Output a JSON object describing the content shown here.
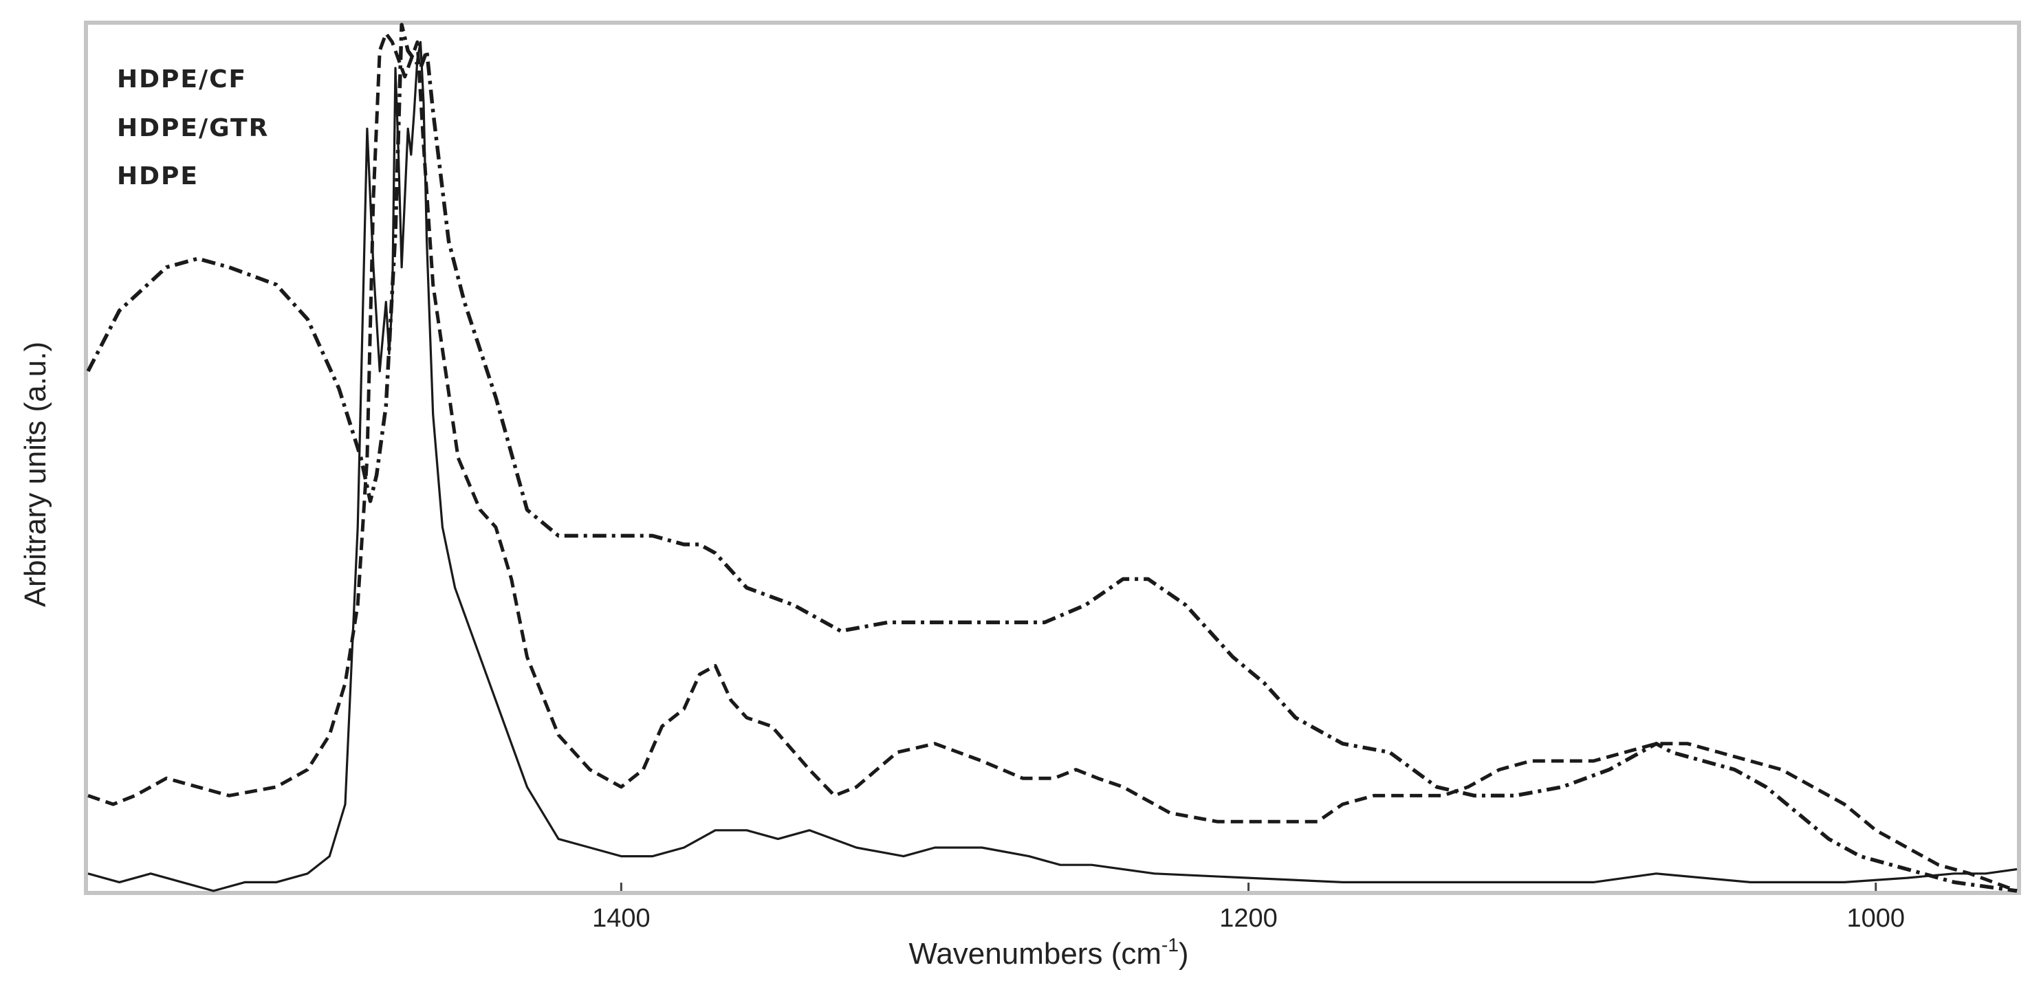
{
  "chart_data": {
    "type": "line",
    "xlabel": "Wavenumbers (cm",
    "xlabel_sup": "-1",
    "xlabel_tail": ")",
    "ylabel": "Arbitrary units (a.u.)",
    "xlim": [
      1570,
      955
    ],
    "ylim": [
      0,
      1
    ],
    "x_reversed": true,
    "yticks": false,
    "grid": false,
    "legend_position": "top-left",
    "legend": [
      "HDPE/CF",
      "HDPE/GTR",
      "HDPE"
    ],
    "xticks": [
      1400,
      1200,
      1000
    ],
    "series": [
      {
        "name": "HDPE/CF",
        "style": "dash-dot",
        "color": "#1a1a1a",
        "x": [
          1570,
          1560,
          1545,
          1535,
          1525,
          1510,
          1500,
          1490,
          1483,
          1480,
          1478,
          1475,
          1472,
          1470,
          1468,
          1466,
          1464,
          1462,
          1460,
          1455,
          1450,
          1440,
          1430,
          1420,
          1410,
          1400,
          1390,
          1380,
          1375,
          1370,
          1360,
          1345,
          1330,
          1315,
          1300,
          1280,
          1265,
          1252,
          1240,
          1232,
          1220,
          1205,
          1195,
          1185,
          1170,
          1155,
          1140,
          1128,
          1115,
          1100,
          1085,
          1075,
          1070,
          1065,
          1055,
          1045,
          1035,
          1025,
          1015,
          1005,
          995,
          985,
          975,
          965,
          955
        ],
        "y": [
          0.6,
          0.67,
          0.72,
          0.73,
          0.72,
          0.7,
          0.66,
          0.58,
          0.5,
          0.45,
          0.48,
          0.56,
          0.76,
          1.0,
          0.97,
          0.96,
          0.95,
          0.97,
          0.9,
          0.75,
          0.68,
          0.57,
          0.44,
          0.41,
          0.41,
          0.41,
          0.41,
          0.4,
          0.4,
          0.39,
          0.35,
          0.33,
          0.3,
          0.31,
          0.31,
          0.31,
          0.31,
          0.33,
          0.36,
          0.36,
          0.33,
          0.27,
          0.24,
          0.2,
          0.17,
          0.16,
          0.12,
          0.11,
          0.11,
          0.12,
          0.14,
          0.16,
          0.17,
          0.16,
          0.15,
          0.14,
          0.12,
          0.09,
          0.06,
          0.04,
          0.03,
          0.02,
          0.01,
          0.005,
          0.0
        ]
      },
      {
        "name": "HDPE/GTR",
        "style": "dashed",
        "color": "#1a1a1a",
        "x": [
          1570,
          1562,
          1555,
          1545,
          1535,
          1525,
          1510,
          1500,
          1493,
          1488,
          1484,
          1481,
          1479,
          1477,
          1475,
          1473,
          1471,
          1469,
          1467,
          1465,
          1463,
          1460,
          1456,
          1452,
          1445,
          1440,
          1435,
          1430,
          1420,
          1410,
          1400,
          1393,
          1387,
          1380,
          1375,
          1370,
          1365,
          1360,
          1352,
          1340,
          1332,
          1325,
          1312,
          1300,
          1285,
          1272,
          1262,
          1255,
          1248,
          1240,
          1225,
          1210,
          1195,
          1185,
          1178,
          1170,
          1160,
          1145,
          1138,
          1130,
          1120,
          1110,
          1100,
          1090,
          1080,
          1070,
          1060,
          1050,
          1040,
          1030,
          1020,
          1010,
          1000,
          990,
          980,
          970,
          955
        ],
        "y": [
          0.11,
          0.1,
          0.11,
          0.13,
          0.12,
          0.11,
          0.12,
          0.14,
          0.18,
          0.24,
          0.33,
          0.5,
          0.8,
          0.97,
          0.99,
          0.98,
          0.96,
          0.94,
          0.96,
          0.98,
          0.86,
          0.7,
          0.6,
          0.5,
          0.44,
          0.42,
          0.36,
          0.27,
          0.18,
          0.14,
          0.12,
          0.14,
          0.19,
          0.21,
          0.25,
          0.26,
          0.22,
          0.2,
          0.19,
          0.14,
          0.11,
          0.12,
          0.16,
          0.17,
          0.15,
          0.13,
          0.13,
          0.14,
          0.13,
          0.12,
          0.09,
          0.08,
          0.08,
          0.08,
          0.08,
          0.1,
          0.11,
          0.11,
          0.11,
          0.12,
          0.14,
          0.15,
          0.15,
          0.15,
          0.16,
          0.17,
          0.17,
          0.16,
          0.15,
          0.14,
          0.12,
          0.1,
          0.07,
          0.05,
          0.03,
          0.02,
          0.0
        ]
      },
      {
        "name": "HDPE",
        "style": "solid",
        "color": "#1a1a1a",
        "x": [
          1570,
          1560,
          1550,
          1540,
          1530,
          1520,
          1510,
          1500,
          1493,
          1488,
          1484,
          1481,
          1479,
          1477,
          1475,
          1474,
          1473,
          1472,
          1471,
          1470,
          1469,
          1468,
          1467,
          1466,
          1465,
          1464,
          1463,
          1462,
          1460,
          1457,
          1453,
          1448,
          1440,
          1430,
          1420,
          1410,
          1400,
          1390,
          1380,
          1370,
          1360,
          1350,
          1340,
          1325,
          1310,
          1300,
          1285,
          1270,
          1260,
          1250,
          1230,
          1200,
          1170,
          1140,
          1110,
          1100,
          1090,
          1070,
          1040,
          1010,
          990,
          975,
          965,
          955
        ],
        "y": [
          0.02,
          0.01,
          0.02,
          0.01,
          0.0,
          0.01,
          0.01,
          0.02,
          0.04,
          0.1,
          0.42,
          0.88,
          0.72,
          0.6,
          0.68,
          0.62,
          0.68,
          0.95,
          0.85,
          0.72,
          0.8,
          0.88,
          0.85,
          0.9,
          0.96,
          0.98,
          0.91,
          0.75,
          0.55,
          0.42,
          0.35,
          0.3,
          0.22,
          0.12,
          0.06,
          0.05,
          0.04,
          0.04,
          0.05,
          0.07,
          0.07,
          0.06,
          0.07,
          0.05,
          0.04,
          0.05,
          0.05,
          0.04,
          0.03,
          0.03,
          0.02,
          0.015,
          0.01,
          0.01,
          0.01,
          0.01,
          0.01,
          0.02,
          0.01,
          0.01,
          0.015,
          0.02,
          0.02,
          0.025
        ]
      }
    ]
  }
}
